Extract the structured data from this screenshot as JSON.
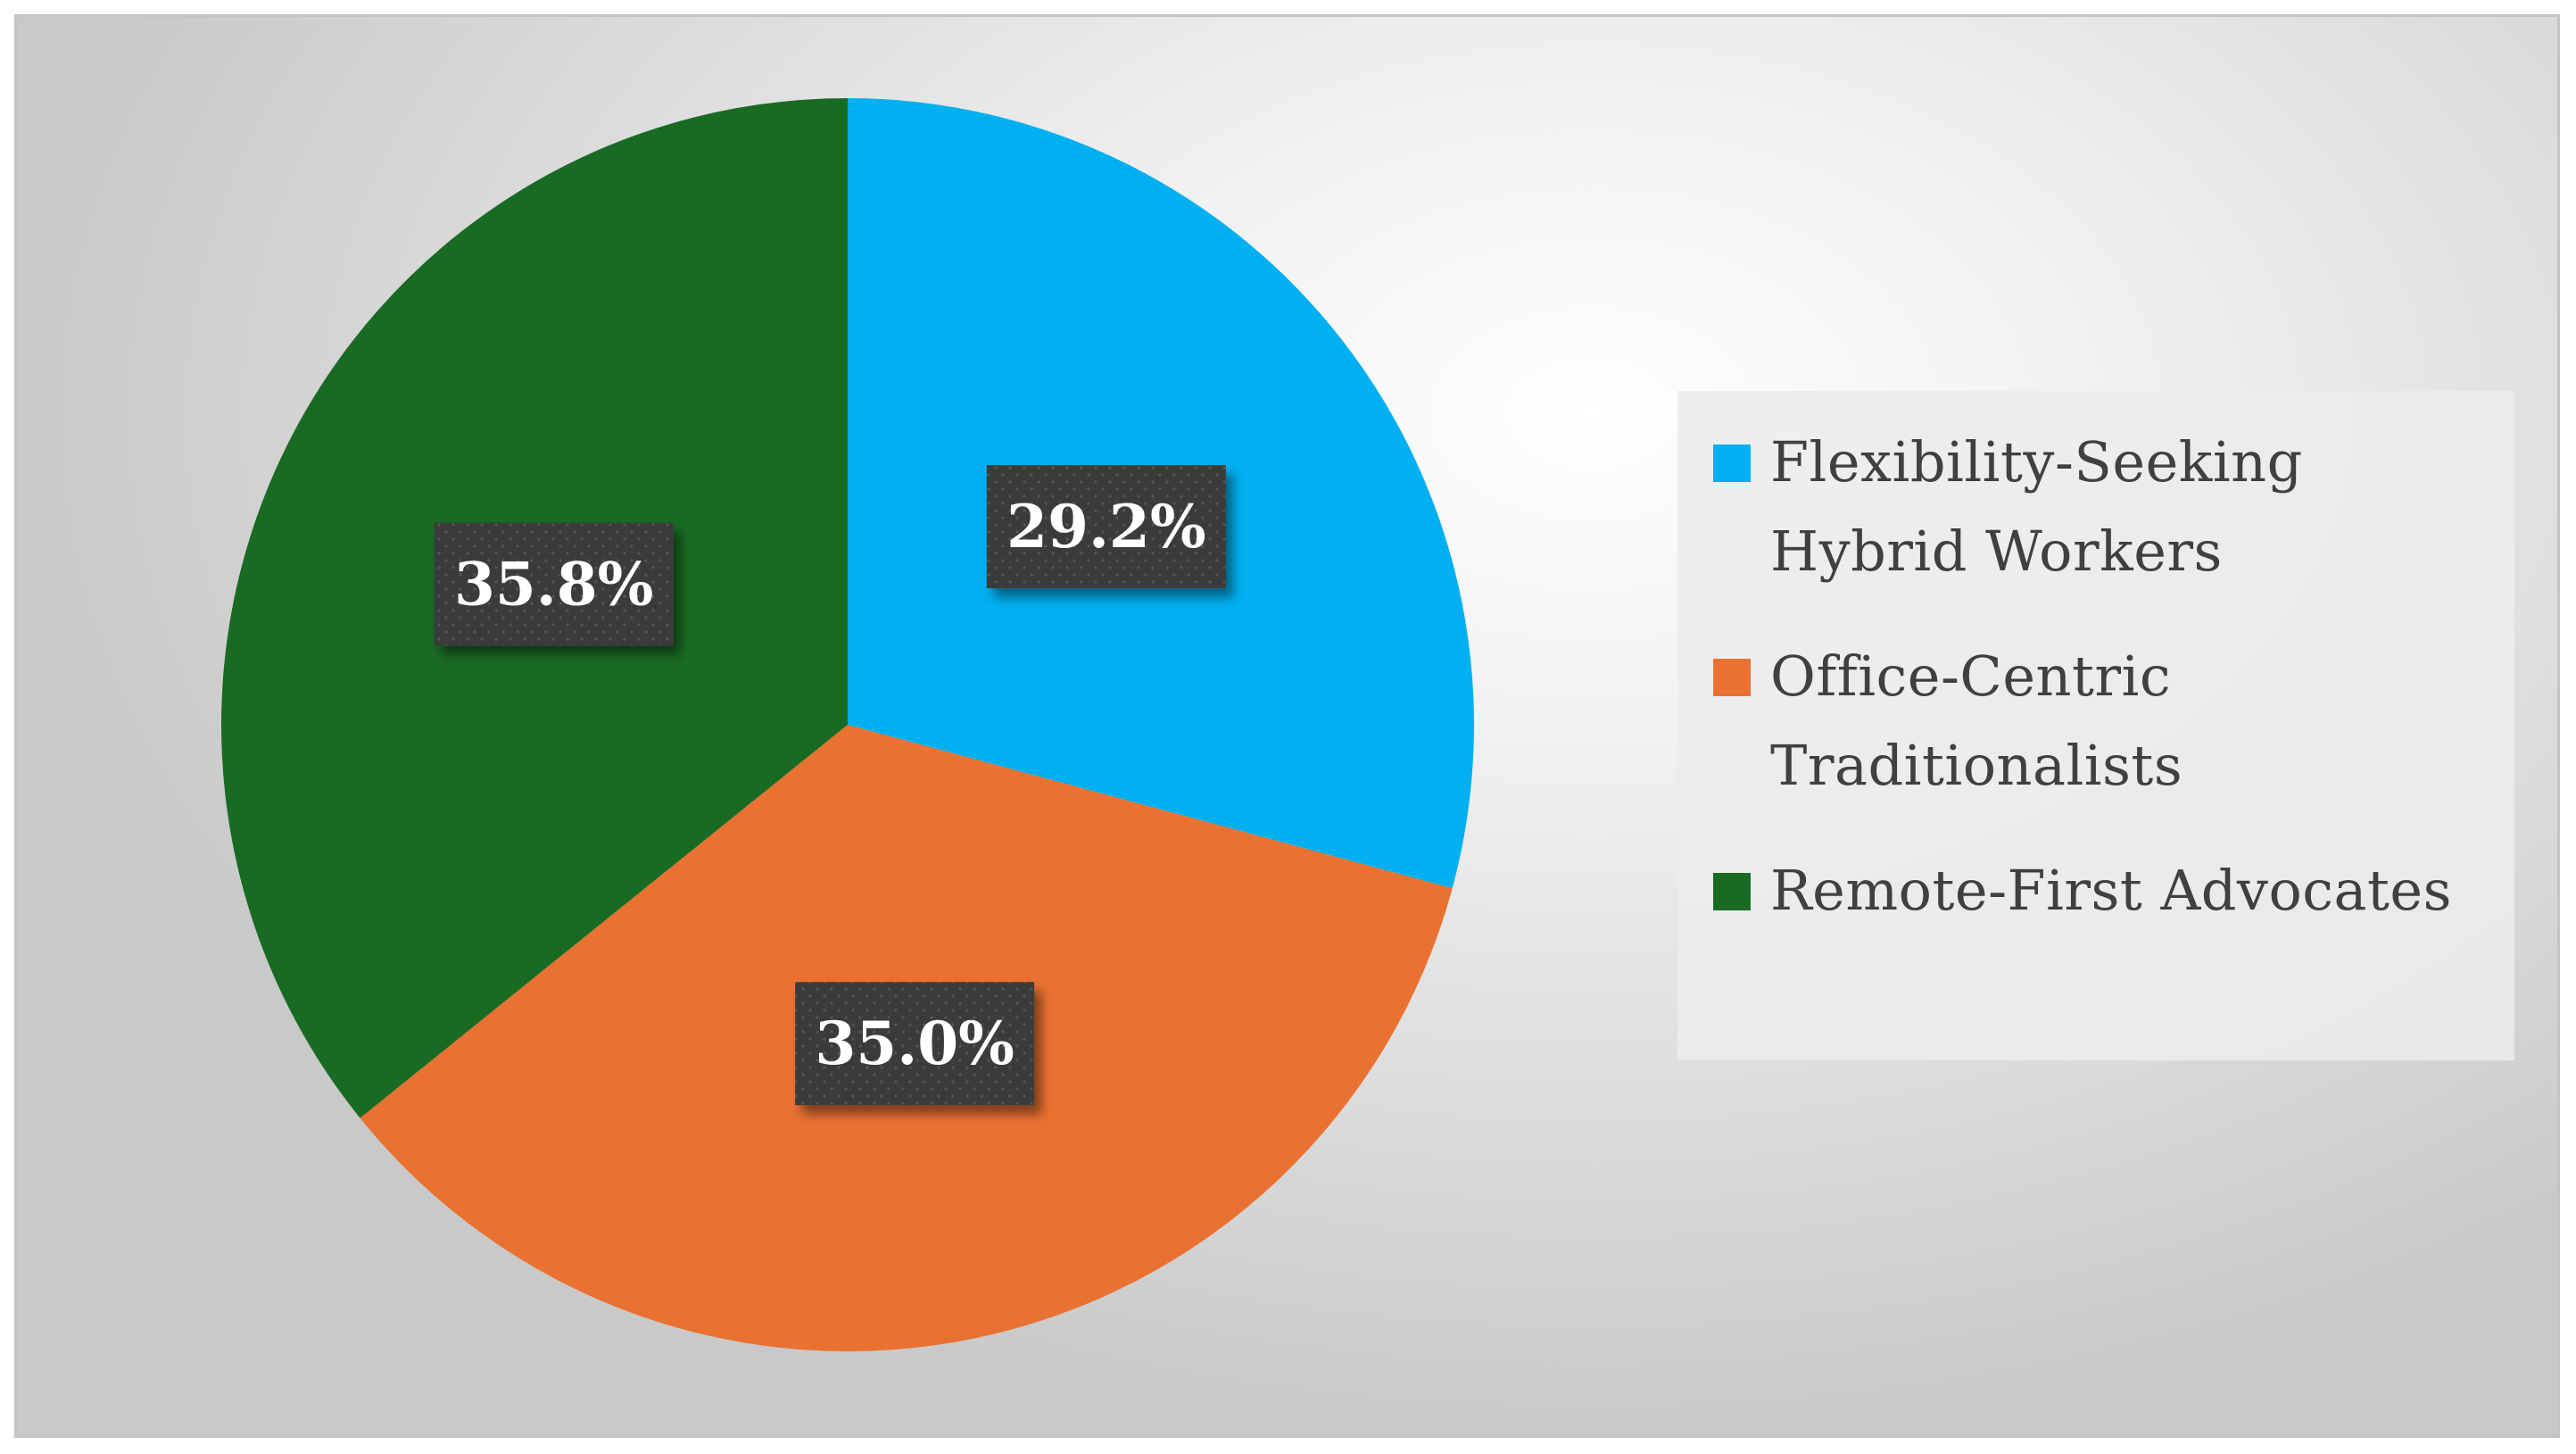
{
  "chart_data": {
    "type": "pie",
    "start_angle_deg": 0,
    "direction": "clockwise",
    "slices": [
      {
        "label": "Flexibility-Seeking Hybrid Workers",
        "value": 29.2,
        "data_label": "29.2%",
        "color": "#00B0F0"
      },
      {
        "label": "Office-Centric Traditionalists",
        "value": 35.0,
        "data_label": "35.0%",
        "color": "#E97132"
      },
      {
        "label": "Remote-First Advocates",
        "value": 35.8,
        "data_label": "35.8%",
        "color": "#196B24"
      }
    ],
    "legend": {
      "placement": "right",
      "items": [
        {
          "label": "Flexibility-Seeking\nHybrid Workers",
          "color": "#00B0F0"
        },
        {
          "label": "Office-Centric\nTraditionalists",
          "color": "#E97132"
        },
        {
          "label": "Remote-First Advocates",
          "color": "#196B24"
        }
      ]
    },
    "data_label_style": {
      "box_color": "#3a3a3a",
      "text_color": "#FFFFFF"
    }
  }
}
